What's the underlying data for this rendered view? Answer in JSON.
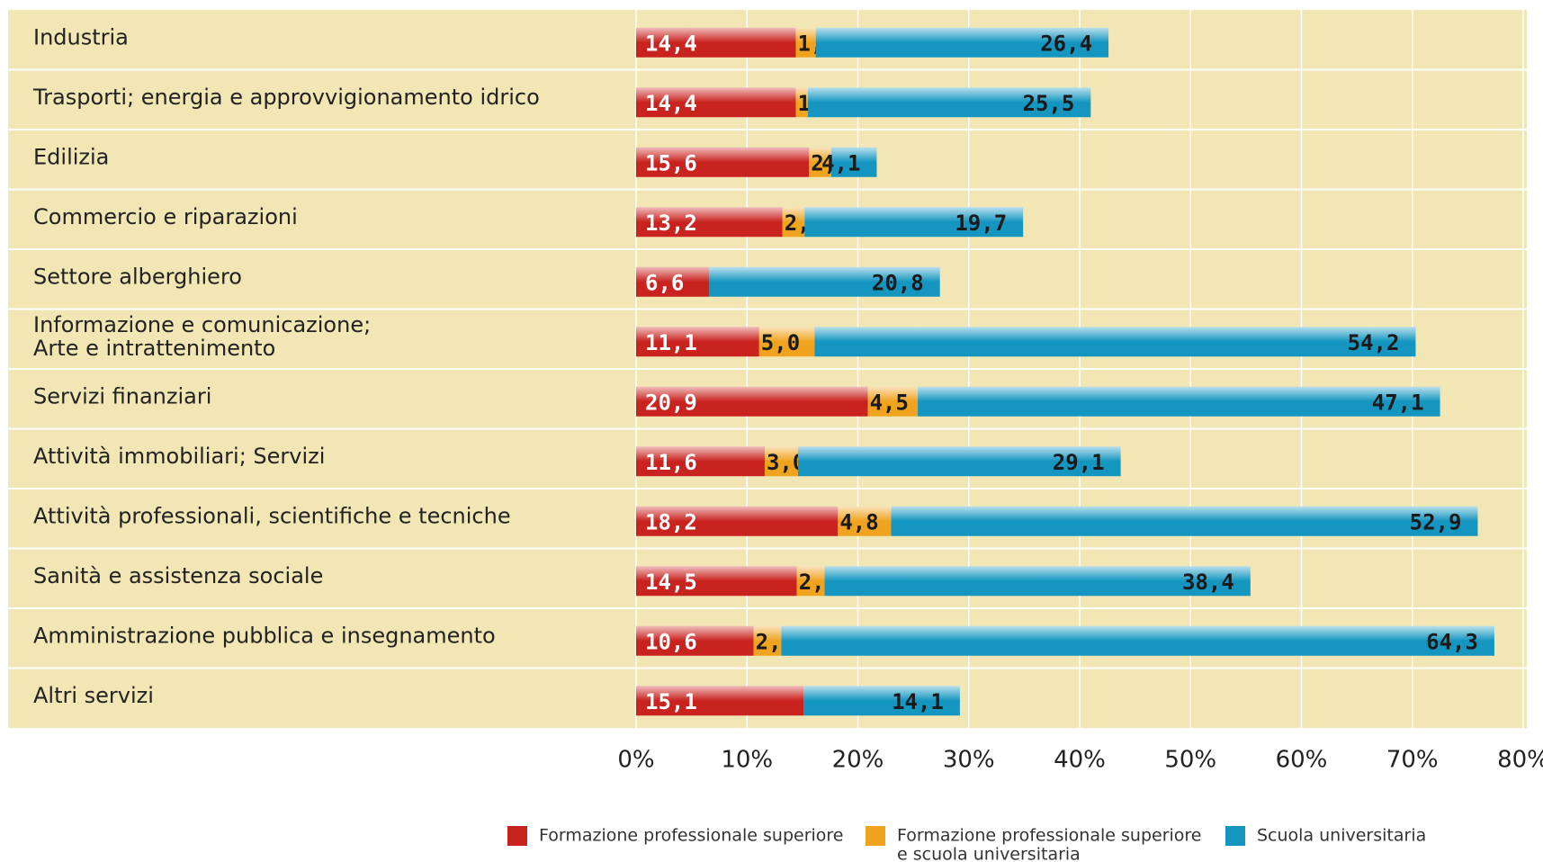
{
  "chart_data": {
    "type": "hbar-stacked",
    "categories": [
      "Industria",
      "Trasporti; energia e approvvigionamento idrico",
      "Edilizia",
      "Commercio e riparazioni",
      "Settore alberghiero",
      "Informazione e comunicazione;\nArte e intrattenimento",
      "Servizi finanziari",
      "Attività immobiliari; Servizi",
      "Attività professionali, scientifiche e tecniche",
      "Sanità e assistenza sociale",
      "Amministrazione pubblica e insegnamento",
      "Altri servizi"
    ],
    "series": [
      {
        "name": "Formazione professionale superiore",
        "color": "#c9231f",
        "values": [
          14.4,
          14.4,
          15.6,
          13.2,
          6.6,
          11.1,
          20.9,
          11.6,
          18.2,
          14.5,
          10.6,
          15.1
        ],
        "value_labels": [
          "14,4",
          "14,4",
          "15,6",
          "13,2",
          "6,6",
          "11,1",
          "20,9",
          "11,6",
          "18,2",
          "14,5",
          "10,6",
          "15,1"
        ]
      },
      {
        "name": "Formazione professionale superiore\ne scuola universitaria",
        "color": "#f0a31e",
        "values": [
          1.8,
          1.1,
          2.0,
          2.0,
          null,
          5.0,
          4.5,
          3.0,
          4.8,
          2.5,
          2.5,
          null
        ],
        "value_labels": [
          "1,8",
          "1,1",
          "2,0",
          "2,0",
          null,
          "5,0",
          "4,5",
          "3,0",
          "4,8",
          "2,5",
          "2,5",
          null
        ]
      },
      {
        "name": "Scuola universitaria",
        "color": "#1496c0",
        "values": [
          26.4,
          25.5,
          4.1,
          19.7,
          20.8,
          54.2,
          47.1,
          29.1,
          52.9,
          38.4,
          64.3,
          14.1
        ],
        "value_labels": [
          "26,4",
          "25,5",
          "4,1",
          "19,7",
          "20,8",
          "54,2",
          "47,1",
          "29,1",
          "52,9",
          "38,4",
          "64,3",
          "14,1"
        ]
      }
    ],
    "xlim": [
      0,
      80
    ],
    "xticks": [
      {
        "value": 0,
        "label": "0%"
      },
      {
        "value": 10,
        "label": "10%"
      },
      {
        "value": 20,
        "label": "20%"
      },
      {
        "value": 30,
        "label": "30%"
      },
      {
        "value": 40,
        "label": "40%"
      },
      {
        "value": 50,
        "label": "50%"
      },
      {
        "value": 60,
        "label": "60%"
      },
      {
        "value": 70,
        "label": "70%"
      },
      {
        "value": 80,
        "label": "80%"
      }
    ],
    "grid": true
  }
}
